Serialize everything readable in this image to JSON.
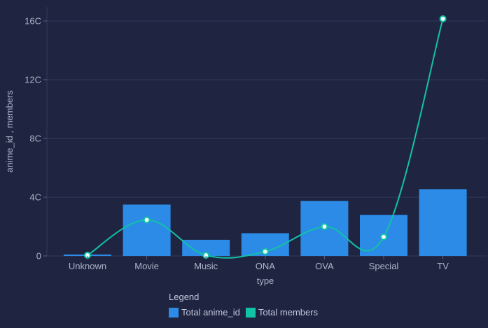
{
  "chart_data": {
    "type": "bar",
    "xlabel": "type",
    "ylabel": "anime_id , members",
    "categories": [
      "Unknown",
      "Movie",
      "Music",
      "ONA",
      "OVA",
      "Special",
      "TV"
    ],
    "ylim": [
      0,
      17
    ],
    "y_ticks": [
      0,
      4,
      8,
      12,
      16
    ],
    "y_tick_labels": [
      "0",
      "4C",
      "8C",
      "12C",
      "16C"
    ],
    "grid": true,
    "legend_position": "bottom-center",
    "series": [
      {
        "name": "Total anime_id",
        "type": "bar",
        "color": "#2b8be6",
        "values": [
          0.1,
          3.5,
          1.1,
          1.55,
          3.75,
          2.8,
          4.55
        ]
      },
      {
        "name": "Total members",
        "type": "line",
        "color": "#12c2a6",
        "values": [
          0.05,
          2.45,
          0.05,
          0.3,
          2.0,
          1.3,
          16.15
        ]
      }
    ]
  },
  "legend": {
    "title": "Legend",
    "items": [
      {
        "label": "Total anime_id",
        "color": "#2b8be6"
      },
      {
        "label": "Total members",
        "color": "#12c2a6"
      }
    ]
  }
}
